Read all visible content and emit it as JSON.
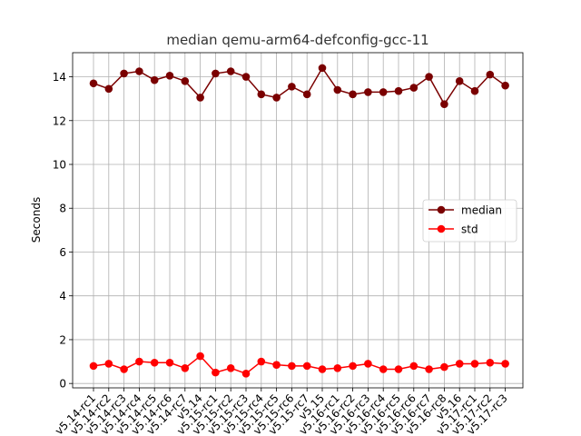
{
  "chart_data": {
    "type": "line",
    "title": "median qemu-arm64-defconfig-gcc-11",
    "xlabel": "",
    "ylabel": "Seconds",
    "ylim": [
      -0.2,
      15.1
    ],
    "yticks": [
      0,
      2,
      4,
      6,
      8,
      10,
      12,
      14
    ],
    "grid": true,
    "legend_position": "center-right",
    "categories": [
      "v5.14-rc1",
      "v5.14-rc2",
      "v5.14-rc3",
      "v5.14-rc4",
      "v5.14-rc5",
      "v5.14-rc6",
      "v5.14-rc7",
      "v5.14",
      "v5.15-rc1",
      "v5.15-rc2",
      "v5.15-rc3",
      "v5.15-rc4",
      "v5.15-rc5",
      "v5.15-rc6",
      "v5.15-rc7",
      "v5.15",
      "v5.16-rc1",
      "v5.16-rc2",
      "v5.16-rc3",
      "v5.16-rc4",
      "v5.16-rc5",
      "v5.16-rc6",
      "v5.16-rc7",
      "v5.16-rc8",
      "v5.16",
      "v5.17-rc1",
      "v5.17-rc2",
      "v5.17-rc3"
    ],
    "series": [
      {
        "name": "median",
        "color": "#7a0000",
        "values": [
          13.7,
          13.45,
          14.15,
          14.25,
          13.85,
          14.05,
          13.8,
          13.05,
          14.15,
          14.25,
          14.0,
          13.2,
          13.05,
          13.55,
          13.2,
          14.4,
          13.4,
          13.2,
          13.3,
          13.3,
          13.35,
          13.5,
          14.0,
          12.75,
          13.8,
          13.35,
          14.1,
          13.6
        ]
      },
      {
        "name": "std",
        "color": "#ff0000",
        "values": [
          0.8,
          0.9,
          0.65,
          1.0,
          0.95,
          0.95,
          0.7,
          1.25,
          0.5,
          0.7,
          0.45,
          1.0,
          0.85,
          0.8,
          0.8,
          0.65,
          0.7,
          0.8,
          0.9,
          0.65,
          0.65,
          0.8,
          0.65,
          0.75,
          0.9,
          0.9,
          0.95,
          0.9
        ]
      }
    ]
  }
}
